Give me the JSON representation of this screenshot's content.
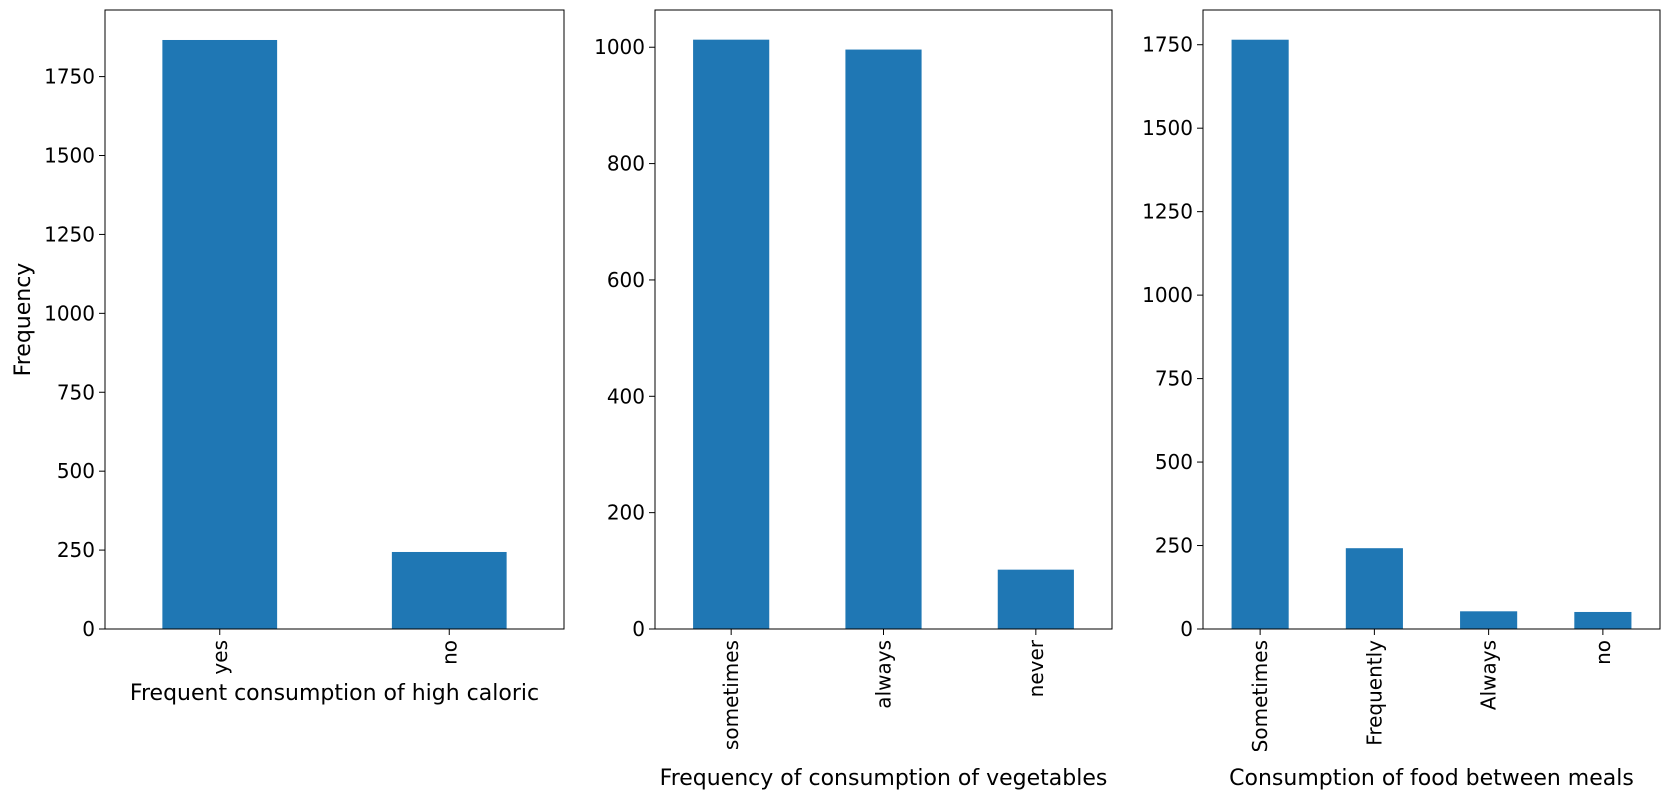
{
  "chart_data": [
    {
      "type": "bar",
      "categories": [
        "yes",
        "no"
      ],
      "values": [
        1866,
        244
      ],
      "xlabel": "Frequent consumption of high caloric",
      "ylabel": "Frequency",
      "ylim": [
        0,
        1961
      ],
      "yticks": [
        "0",
        "250",
        "500",
        "750",
        "1000",
        "1250",
        "1500",
        "1750"
      ],
      "grid": false,
      "bar_color": "#1f77b4"
    },
    {
      "type": "bar",
      "categories": [
        "sometimes",
        "always",
        "never"
      ],
      "values": [
        1013,
        996,
        102
      ],
      "xlabel": "Frequency of consumption of vegetables",
      "ylabel": "",
      "ylim": [
        0,
        1064
      ],
      "yticks": [
        "0",
        "200",
        "400",
        "600",
        "800",
        "1000"
      ],
      "grid": false,
      "bar_color": "#1f77b4"
    },
    {
      "type": "bar",
      "categories": [
        "Sometimes",
        "Frequently",
        "Always",
        "no"
      ],
      "values": [
        1765,
        242,
        53,
        51
      ],
      "xlabel": "Consumption of food between meals",
      "ylabel": "",
      "ylim": [
        0,
        1854
      ],
      "yticks": [
        "0",
        "250",
        "500",
        "750",
        "1000",
        "1250",
        "1500",
        "1750"
      ],
      "grid": false,
      "bar_color": "#1f77b4"
    }
  ]
}
